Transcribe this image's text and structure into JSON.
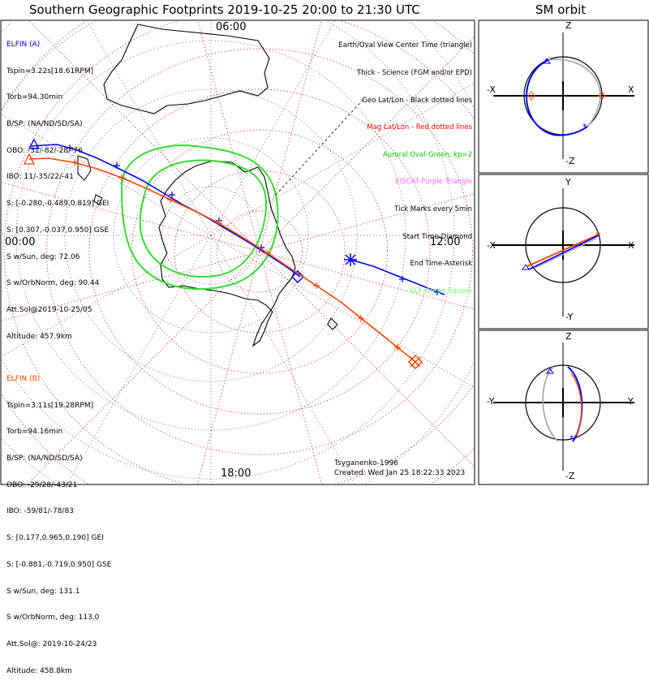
{
  "title": "Southern Geographic Footprints 2019-10-25 20:00 to 21:30 UTC",
  "sm_title": "SM orbit",
  "hour_labels": {
    "top": "06:00",
    "left": "00:00",
    "right": "12:00",
    "bottom": "18:00"
  },
  "elfin_a": {
    "name": "ELFIN (A)",
    "color": "#0000ff",
    "lines": [
      "Tspin=3.22s[18.61RPM]",
      "Torb=94.30min",
      "B/SP: (NA/ND/SD/SA)",
      "OBO: -31/-82/-28/-76",
      "IBO: 11/-35/22/-41",
      "S: [-0.280,-0.489,0.819] GEI",
      "S: [0.307,-0.037,0.950] GSE",
      "S w/Sun, deg: 72.06",
      "S w/OrbNorm, deg: 90.44",
      "Att.Sol@2019-10-25/05",
      "Altitude: 457.9km"
    ]
  },
  "elfin_b": {
    "name": "ELFIN (B)",
    "color": "#ff4500",
    "lines": [
      "Tspin=3.11s[19.28RPM]",
      "Torb=94.16min",
      "B/SP: (NA/ND/SD/SA)",
      "OBO: -29/28/-43/21",
      "IBO: -59/81/-78/83",
      "S: [0.177,0.965,0.190] GEI",
      "S: [-0.881,-0.719,0.950] GSE",
      "S w/Sun, deg: 131.1",
      "S w/OrbNorm, deg: 113.0",
      "Att.Sol@: 2019-10-24/23",
      "Altitude: 458.8km"
    ]
  },
  "legend": [
    {
      "text": "Earth/Oval View Center Time (triangle)",
      "color": "#000000"
    },
    {
      "text": "Thick - Science (FGM and/or EPD)",
      "color": "#000000"
    },
    {
      "text": "Geo Lat/Lon - Black dotted lines",
      "color": "#000000"
    },
    {
      "text": "Mag Lat/Lon - Red dotted lines",
      "color": "#ff0000"
    },
    {
      "text": "Auroral Oval-Green, kp=2",
      "color": "#00cc00"
    },
    {
      "text": "EISCAT-Purple Triangle",
      "color": "#ff66ff"
    },
    {
      "text": "Tick Marks every 5min",
      "color": "#000000"
    },
    {
      "text": "Start Time-Diamond",
      "color": "#000000"
    },
    {
      "text": "End Time-Asterisk",
      "color": "#000000"
    },
    {
      "text": "VLF-Green Square",
      "color": "#66ff66"
    }
  ],
  "credits": {
    "model": "Tsyganenko-1996",
    "created": "Created: Wed Jan 25 18:22:33 2023"
  },
  "sm_panels": [
    {
      "top": "Z",
      "bottom": "-Z",
      "left": "-X",
      "right": "X"
    },
    {
      "top": "Y",
      "bottom": "-Y",
      "left": "-X",
      "right": "X"
    },
    {
      "top": "Z",
      "bottom": "-Z",
      "left": "-Y",
      "right": "Y"
    }
  ],
  "colors": {
    "orbit_a": "#0000ff",
    "orbit_b": "#ff4500",
    "oval": "#33dd33",
    "geo_grid": "#000000",
    "mag_grid": "#ff0000"
  }
}
